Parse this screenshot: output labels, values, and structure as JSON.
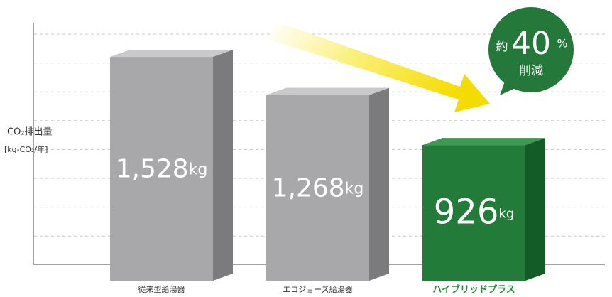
{
  "chart_data": {
    "type": "bar",
    "y_label": [
      "CO₂排出量",
      "[kg-CO₂/年]"
    ],
    "categories": [
      "従来型給湯器",
      "エコジョーズ給湯器",
      "ハイブリッドプラス"
    ],
    "values": [
      1528,
      1268,
      926
    ],
    "value_labels": [
      "1,528",
      "1,268",
      "926"
    ],
    "unit": "kg",
    "colors": [
      {
        "front": "#a8a8aa",
        "side": "#7b7b7d",
        "top": "#c9c9cb"
      },
      {
        "front": "#a8a8aa",
        "side": "#7b7b7d",
        "top": "#c9c9cb"
      },
      {
        "front": "#237b39",
        "side": "#135c27",
        "top": "#3e9a50"
      }
    ],
    "label_colors": [
      "#333333",
      "#333333",
      "#2a8a3a"
    ],
    "ylim": [
      0,
      1800
    ],
    "annotation": {
      "prefix": "約",
      "number": "40",
      "suffix": "%",
      "text": "削減"
    }
  }
}
